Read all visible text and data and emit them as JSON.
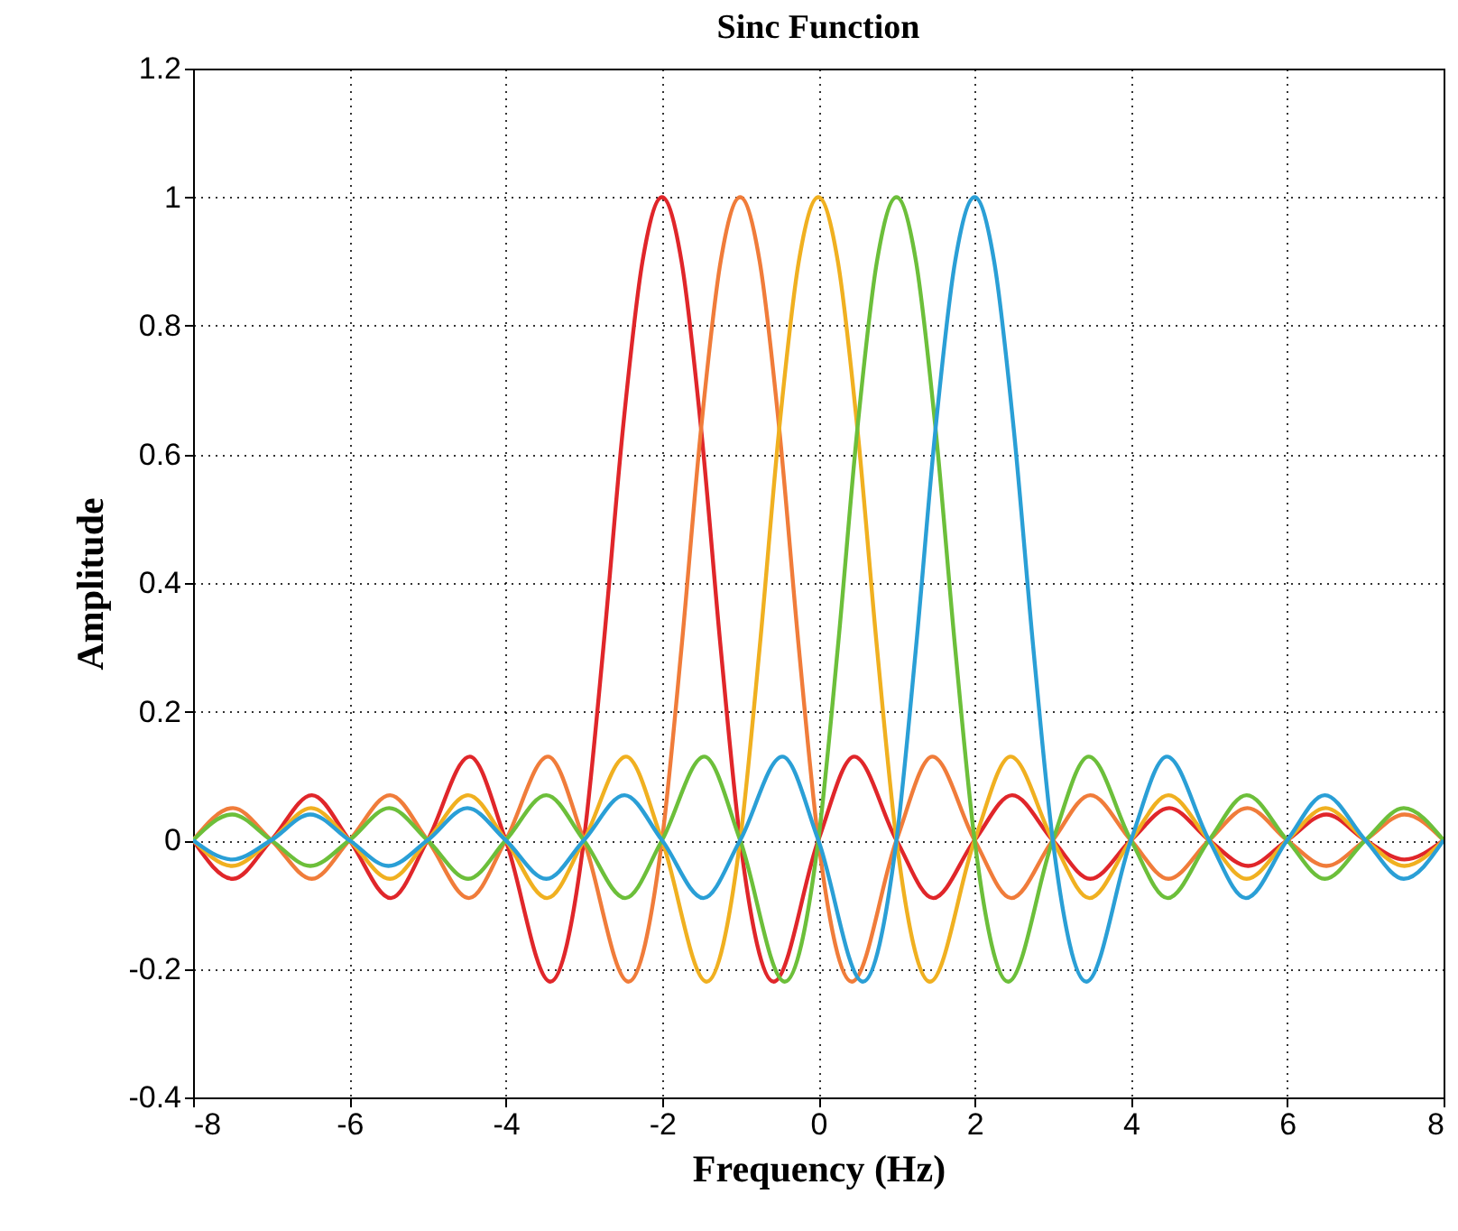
{
  "chart_data": {
    "type": "line",
    "title": "Sinc Function",
    "xlabel": "Frequency (Hz)",
    "ylabel": "Amplitude",
    "xlim": [
      -8,
      8
    ],
    "ylim": [
      -0.4,
      1.2
    ],
    "xticks": [
      -8,
      -6,
      -4,
      -2,
      0,
      2,
      4,
      6,
      8
    ],
    "yticks": [
      -0.4,
      -0.2,
      0,
      0.2,
      0.4,
      0.6,
      0.8,
      1,
      1.2
    ],
    "grid": true,
    "line_style": "solid",
    "series": [
      {
        "color": "#e0262a",
        "x": [
          -8,
          -7.49,
          -7,
          -6.48,
          -6,
          -5.47,
          -5,
          -4.46,
          -4,
          -3.43,
          -3,
          -2.75,
          -2.5,
          -2.25,
          -2,
          -1.75,
          -1.5,
          -1.25,
          -1,
          -0.57,
          0,
          0.46,
          1,
          1.47,
          2,
          2.48,
          3,
          3.48,
          4,
          4.49,
          5,
          5.5,
          6,
          6.5,
          7,
          7.5,
          8
        ],
        "values": [
          0,
          -0.06,
          0,
          0.07,
          0,
          -0.09,
          0,
          0.13,
          0,
          -0.22,
          0,
          0.3,
          0.64,
          0.9,
          1,
          0.9,
          0.64,
          0.3,
          0,
          -0.22,
          0,
          0.13,
          0,
          -0.09,
          0,
          0.07,
          0,
          -0.06,
          0,
          0.05,
          0,
          -0.04,
          0,
          0.04,
          0,
          -0.03,
          0
        ]
      },
      {
        "color": "#f07c3a",
        "x": [
          -8,
          -7.49,
          -7,
          -6.48,
          -6,
          -5.48,
          -5,
          -4.47,
          -4,
          -3.46,
          -3,
          -2.43,
          -2,
          -1.75,
          -1.5,
          -1.25,
          -1,
          -0.75,
          -0.5,
          -0.25,
          0,
          0.43,
          1,
          1.46,
          2,
          2.47,
          3,
          3.48,
          4,
          4.48,
          5,
          5.49,
          6,
          6.5,
          7,
          7.5,
          8
        ],
        "values": [
          0,
          0.05,
          0,
          -0.06,
          0,
          0.07,
          0,
          -0.09,
          0,
          0.13,
          0,
          -0.22,
          0,
          0.3,
          0.64,
          0.9,
          1,
          0.9,
          0.64,
          0.3,
          0,
          -0.22,
          0,
          0.13,
          0,
          -0.09,
          0,
          0.07,
          0,
          -0.06,
          0,
          0.05,
          0,
          -0.04,
          0,
          0.04,
          0
        ]
      },
      {
        "color": "#f0b020",
        "x": [
          -8,
          -7.5,
          -7,
          -6.49,
          -6,
          -5.48,
          -5,
          -4.48,
          -4,
          -3.47,
          -3,
          -2.46,
          -2,
          -1.43,
          -1,
          -0.75,
          -0.5,
          -0.25,
          0,
          0.25,
          0.5,
          0.75,
          1,
          1.43,
          2,
          2.46,
          3,
          3.47,
          4,
          4.48,
          5,
          5.48,
          6,
          6.49,
          7,
          7.5,
          8
        ],
        "values": [
          0,
          -0.04,
          0,
          0.05,
          0,
          -0.06,
          0,
          0.07,
          0,
          -0.09,
          0,
          0.13,
          0,
          -0.22,
          0,
          0.3,
          0.64,
          0.9,
          1,
          0.9,
          0.64,
          0.3,
          0,
          -0.22,
          0,
          0.13,
          0,
          -0.09,
          0,
          0.07,
          0,
          -0.06,
          0,
          0.05,
          0,
          -0.04,
          0
        ]
      },
      {
        "color": "#6cbf3a",
        "x": [
          -8,
          -7.5,
          -7,
          -6.5,
          -6,
          -5.49,
          -5,
          -4.48,
          -4,
          -3.48,
          -3,
          -2.47,
          -2,
          -1.46,
          -1,
          -0.43,
          0,
          0.25,
          0.5,
          0.75,
          1,
          1.25,
          1.5,
          1.75,
          2,
          2.43,
          3,
          3.46,
          4,
          4.47,
          5,
          5.48,
          6,
          6.48,
          7,
          7.49,
          8
        ],
        "values": [
          0,
          0.04,
          0,
          -0.04,
          0,
          0.05,
          0,
          -0.06,
          0,
          0.07,
          0,
          -0.09,
          0,
          0.13,
          0,
          -0.22,
          0,
          0.3,
          0.64,
          0.9,
          1,
          0.9,
          0.64,
          0.3,
          0,
          -0.22,
          0,
          0.13,
          0,
          -0.09,
          0,
          0.07,
          0,
          -0.06,
          0,
          0.05,
          0
        ]
      },
      {
        "color": "#2a9fd6",
        "x": [
          -8,
          -7.5,
          -7,
          -6.5,
          -6,
          -5.5,
          -5,
          -4.49,
          -4,
          -3.48,
          -3,
          -2.48,
          -2,
          -1.47,
          -1,
          -0.46,
          0,
          0.57,
          1,
          1.25,
          1.5,
          1.75,
          2,
          2.25,
          2.5,
          2.75,
          3,
          3.43,
          4,
          4.46,
          5,
          5.47,
          6,
          6.48,
          7,
          7.49,
          8
        ],
        "values": [
          0,
          -0.03,
          0,
          0.04,
          0,
          -0.04,
          0,
          0.05,
          0,
          -0.06,
          0,
          0.07,
          0,
          -0.09,
          0,
          0.13,
          0,
          -0.22,
          0,
          0.3,
          0.64,
          0.9,
          1,
          0.9,
          0.64,
          0.3,
          0,
          -0.22,
          0,
          0.13,
          0,
          -0.09,
          0,
          0.07,
          0,
          -0.06,
          0
        ]
      }
    ]
  }
}
